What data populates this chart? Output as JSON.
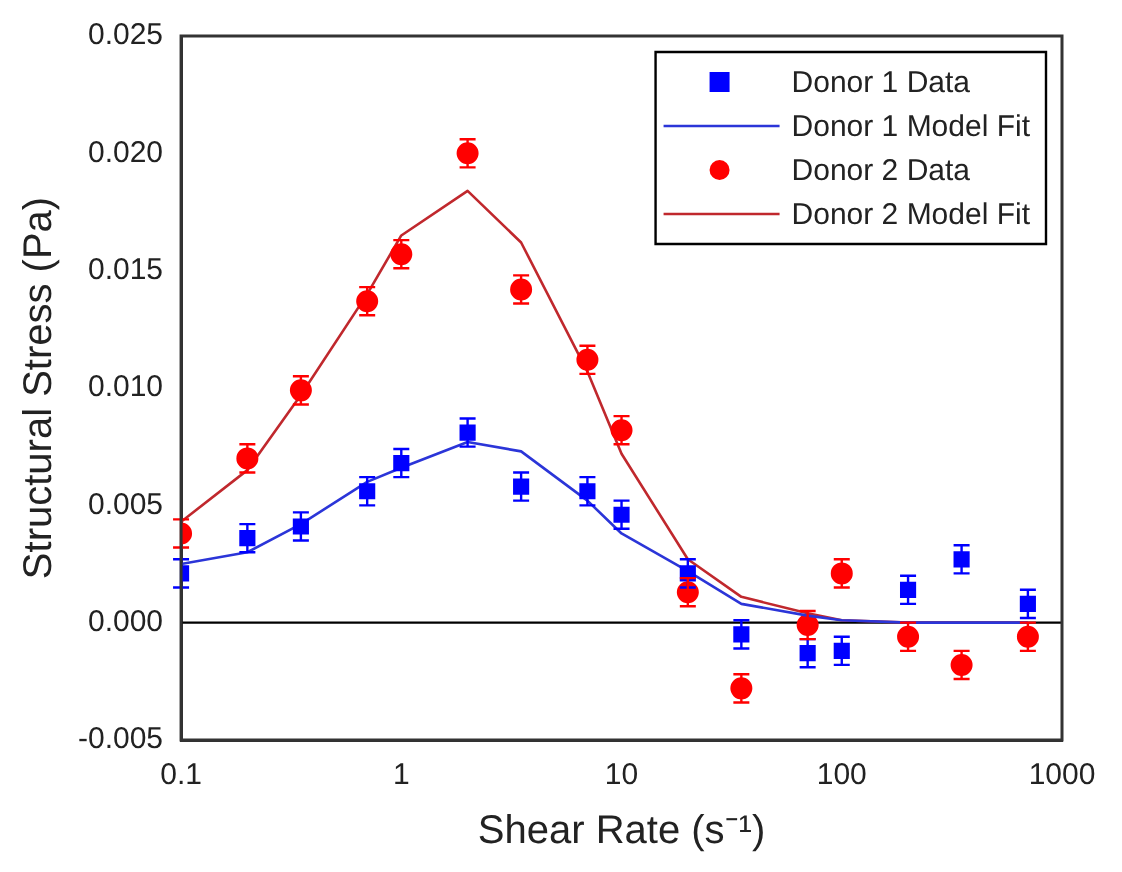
{
  "chart_data": {
    "type": "scatter",
    "xlabel": "Shear Rate (s⁻¹)",
    "ylabel": "Structural Stress (Pa)",
    "log": "x",
    "grid": false,
    "legend": "top right",
    "x": [
      0.1,
      0.2,
      0.35,
      0.7,
      1,
      2,
      3.5,
      7,
      10,
      20,
      35,
      70,
      100,
      200,
      350,
      700
    ],
    "xlim": [
      0.1,
      1000
    ],
    "xticks": [
      0.1,
      1,
      10,
      100,
      1000
    ],
    "ylim": [
      -0.005,
      0.025
    ],
    "yticks": [
      {
        "value": -0.005,
        "label": "-0.005"
      },
      {
        "value": 0,
        "label": "0.000"
      },
      {
        "value": 0.005,
        "label": "0.005"
      },
      {
        "value": 0.01,
        "label": "0.010"
      },
      {
        "value": 0.015,
        "label": "0.015"
      },
      {
        "value": 0.02,
        "label": "0.020"
      },
      {
        "value": 0.025,
        "label": "0.025"
      }
    ],
    "ref_lines": [
      {
        "axis": "y",
        "value": 0,
        "color": "#000000"
      }
    ],
    "series": [
      {
        "name": "Donor 1 Data",
        "marker": "square",
        "color": "#0000ff",
        "values": [
          0.0021,
          0.0036,
          0.0041,
          0.0056,
          0.0068,
          0.0081,
          0.0058,
          0.0056,
          0.0046,
          0.0021,
          -0.0005,
          -0.0013,
          -0.0012,
          0.0014,
          0.0027,
          0.0008
        ],
        "errors": [
          0.0006,
          0.0006,
          0.0006,
          0.0006,
          0.0006,
          0.0006,
          0.0006,
          0.0006,
          0.0006,
          0.0006,
          0.0006,
          0.0006,
          0.0006,
          0.0006,
          0.0006,
          0.0006
        ]
      },
      {
        "name": "Donor 1 Model Fit",
        "type": "line",
        "marker": "none",
        "color": "#2b35d8",
        "values": [
          0.0025,
          0.003,
          0.0042,
          0.006,
          0.0066,
          0.0077,
          0.0073,
          0.0052,
          0.0038,
          0.0022,
          0.0008,
          0.0003,
          0.0001,
          0,
          0,
          0
        ]
      },
      {
        "name": "Donor 2 Data",
        "marker": "circle",
        "color": "#ff0000",
        "values": [
          0.0038,
          0.007,
          0.0099,
          0.0137,
          0.0157,
          0.02,
          0.0142,
          0.0112,
          0.0082,
          0.0013,
          -0.0028,
          -0.0001,
          0.0021,
          -0.0006,
          -0.0018,
          -0.0006
        ],
        "errors": [
          0.0006,
          0.0006,
          0.0006,
          0.0006,
          0.0006,
          0.0006,
          0.0006,
          0.0006,
          0.0006,
          0.0006,
          0.0006,
          0.0006,
          0.0006,
          0.0006,
          0.0006,
          0.0006
        ]
      },
      {
        "name": "Donor 2 Model Fit",
        "type": "line",
        "marker": "none",
        "color": "#c0282d",
        "values": [
          0.0043,
          0.0065,
          0.0097,
          0.014,
          0.0165,
          0.0184,
          0.0162,
          0.0107,
          0.0072,
          0.0027,
          0.0011,
          0.0004,
          0.0001,
          0,
          0,
          0
        ]
      }
    ]
  }
}
